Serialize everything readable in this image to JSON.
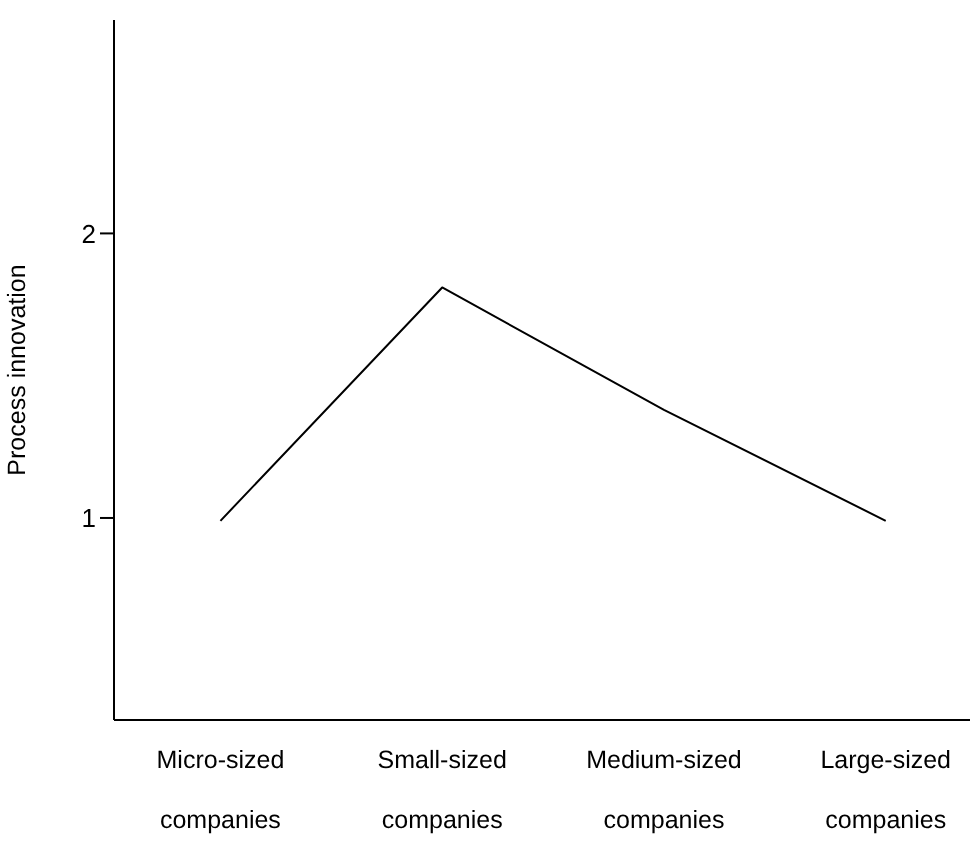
{
  "chart_data": {
    "type": "line",
    "ylabel": "Process innovation",
    "categories": [
      "Micro-sized companies",
      "Small-sized companies",
      "Medium-sized companies",
      "Large-sized companies"
    ],
    "series": [
      {
        "color": "#000000",
        "values": [
          0.99,
          1.81,
          1.38,
          0.99
        ]
      }
    ],
    "ylim": [
      0.29,
      2.75
    ],
    "yticks": [
      1,
      2
    ],
    "grid": false,
    "legend": false,
    "marker": "none",
    "line_style": "solid"
  }
}
